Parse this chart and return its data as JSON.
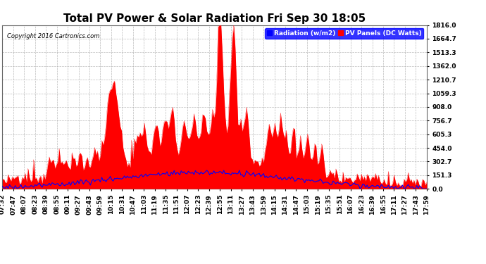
{
  "title": "Total PV Power & Solar Radiation Fri Sep 30 18:05",
  "copyright": "Copyright 2016 Cartronics.com",
  "yticks": [
    0.0,
    151.3,
    302.7,
    454.0,
    605.3,
    756.7,
    908.0,
    1059.3,
    1210.7,
    1362.0,
    1513.3,
    1664.7,
    1816.0
  ],
  "ymax": 1816.0,
  "ymin": 0.0,
  "legend_radiation_label": "Radiation (w/m2)",
  "legend_pv_label": "PV Panels (DC Watts)",
  "bg_color": "#ffffff",
  "plot_bg_color": "#ffffff",
  "grid_color": "#aaaaaa",
  "radiation_color": "#0000ff",
  "pv_color": "#ff0000",
  "title_fontsize": 11,
  "tick_fontsize": 6.5,
  "xtick_labels": [
    "07:32",
    "07:47",
    "08:07",
    "08:23",
    "08:39",
    "08:55",
    "09:11",
    "09:27",
    "09:43",
    "09:59",
    "10:15",
    "10:31",
    "10:47",
    "11:03",
    "11:19",
    "11:35",
    "11:51",
    "12:07",
    "12:23",
    "12:39",
    "12:55",
    "13:11",
    "13:27",
    "13:43",
    "13:59",
    "14:15",
    "14:31",
    "14:47",
    "15:03",
    "15:19",
    "15:35",
    "15:51",
    "16:07",
    "16:23",
    "16:39",
    "16:55",
    "17:11",
    "17:27",
    "17:43",
    "17:59"
  ]
}
